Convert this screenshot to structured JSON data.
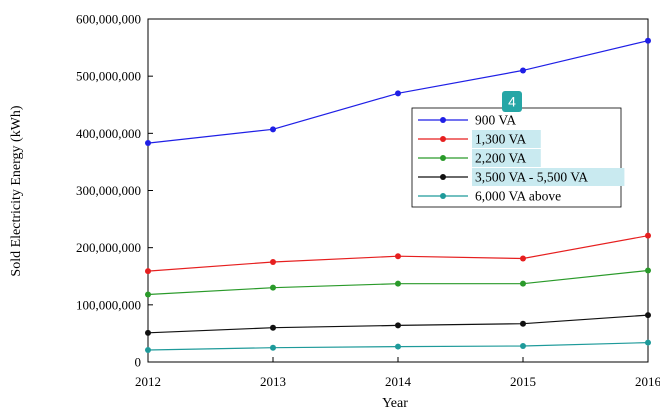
{
  "chart_data": {
    "type": "line",
    "title": "",
    "xlabel": "Year",
    "ylabel": "Sold Electricity Energy (kWh)",
    "x": [
      2012,
      2013,
      2014,
      2015,
      2016
    ],
    "x_tick_labels": [
      "2012",
      "2013",
      "2014",
      "2015",
      "2016"
    ],
    "ylim": [
      0,
      600000000
    ],
    "y_ticks": [
      0,
      100000000,
      200000000,
      300000000,
      400000000,
      500000000,
      600000000
    ],
    "y_tick_labels": [
      "0",
      "100,000,000",
      "200,000,000",
      "300,000,000",
      "400,000,000",
      "500,000,000",
      "600,000,000"
    ],
    "grid": false,
    "legend_position": "upper-right-center",
    "series": [
      {
        "name": "900 VA",
        "color": "#1f1fe6",
        "values": [
          383000000,
          407000000,
          470000000,
          510000000,
          562000000
        ]
      },
      {
        "name": "1,300 VA",
        "color": "#e61f1f",
        "values": [
          159000000,
          175000000,
          185000000,
          181000000,
          221000000
        ]
      },
      {
        "name": "2,200 VA",
        "color": "#2a9a2a",
        "values": [
          118000000,
          130000000,
          137000000,
          137000000,
          160000000
        ]
      },
      {
        "name": "3,500 VA - 5,500 VA",
        "color": "#111111",
        "values": [
          51000000,
          60000000,
          64000000,
          67000000,
          82000000
        ]
      },
      {
        "name": "6,000 VA above",
        "color": "#1e9a9a",
        "values": [
          21000000,
          25000000,
          27000000,
          28000000,
          34000000
        ]
      }
    ]
  },
  "overlay": {
    "badge_label": "4",
    "badge_color": "#26a6a6",
    "highlight_color": "#c9eaf0",
    "highlighted_legend_entries": [
      1,
      2,
      3
    ]
  }
}
